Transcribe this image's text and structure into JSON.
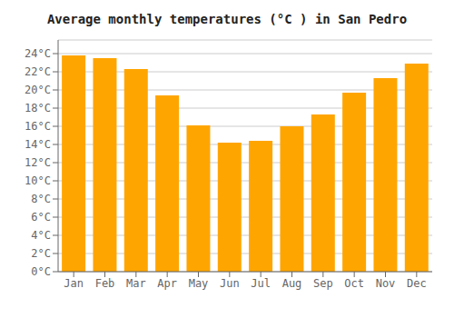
{
  "chart_data": {
    "type": "bar",
    "title": "Average monthly temperatures (°C ) in San Pedro",
    "categories": [
      "Jan",
      "Feb",
      "Mar",
      "Apr",
      "May",
      "Jun",
      "Jul",
      "Aug",
      "Sep",
      "Oct",
      "Nov",
      "Dec"
    ],
    "values": [
      23.8,
      23.5,
      22.3,
      19.4,
      16.1,
      14.2,
      14.4,
      16.0,
      17.3,
      19.7,
      21.3,
      22.9
    ],
    "color": "#FFA500",
    "ylim": [
      0,
      25.5
    ],
    "yticks": [
      {
        "value": 0,
        "label": "0°C"
      },
      {
        "value": 2,
        "label": "2°C"
      },
      {
        "value": 4,
        "label": "4°C"
      },
      {
        "value": 6,
        "label": "6°C"
      },
      {
        "value": 8,
        "label": "8°C"
      },
      {
        "value": 10,
        "label": "10°C"
      },
      {
        "value": 12,
        "label": "12°C"
      },
      {
        "value": 14,
        "label": "14°C"
      },
      {
        "value": 16,
        "label": "16°C"
      },
      {
        "value": 18,
        "label": "18°C"
      },
      {
        "value": 20,
        "label": "20°C"
      },
      {
        "value": 22,
        "label": "22°C"
      },
      {
        "value": 24,
        "label": "24°C"
      }
    ],
    "grid": true
  }
}
